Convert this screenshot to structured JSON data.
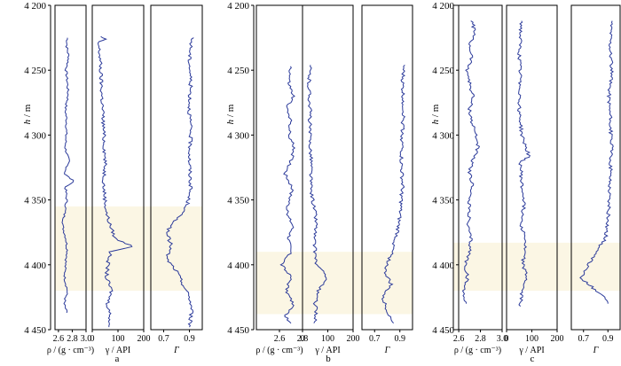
{
  "chart_data": [
    {
      "type": "line",
      "panel_label": "a",
      "ylabel_var": "h",
      "ylabel_unit": " / m",
      "ylim": [
        4200,
        4450
      ],
      "yticks": [
        4200,
        4250,
        4300,
        4350,
        4400,
        4450
      ],
      "ytick_labels": [
        "4 200",
        "4 250",
        "4 300",
        "4 350",
        "4 400",
        "4 450"
      ],
      "highlight": {
        "from": 4355,
        "to": 4420,
        "color": "#fbf6e4"
      },
      "tracks": [
        {
          "xlabel": "ρ / (g · cm⁻³)",
          "xlim": [
            2.55,
            3.0
          ],
          "xticks": [
            2.6,
            2.8,
            3.0
          ],
          "xtick_labels": [
            "2.6",
            "2.8",
            "3.0"
          ],
          "depth_range": [
            4225,
            4437
          ],
          "points": [
            [
              4225,
              2.73
            ],
            [
              4232,
              2.72
            ],
            [
              4240,
              2.75
            ],
            [
              4250,
              2.71
            ],
            [
              4260,
              2.73
            ],
            [
              4270,
              2.74
            ],
            [
              4280,
              2.7
            ],
            [
              4290,
              2.72
            ],
            [
              4300,
              2.71
            ],
            [
              4310,
              2.7
            ],
            [
              4320,
              2.75
            ],
            [
              4330,
              2.69
            ],
            [
              4336,
              2.83
            ],
            [
              4340,
              2.7
            ],
            [
              4350,
              2.72
            ],
            [
              4360,
              2.69
            ],
            [
              4370,
              2.66
            ],
            [
              4380,
              2.71
            ],
            [
              4390,
              2.73
            ],
            [
              4400,
              2.7
            ],
            [
              4410,
              2.69
            ],
            [
              4420,
              2.73
            ],
            [
              4430,
              2.68
            ],
            [
              4437,
              2.72
            ]
          ]
        },
        {
          "xlabel": "γ / API",
          "xlim": [
            0,
            200
          ],
          "xticks": [
            0,
            100,
            200
          ],
          "xtick_labels": [
            "0",
            "100",
            "200"
          ],
          "depth_range": [
            4224,
            4448
          ],
          "points": [
            [
              4224,
              30
            ],
            [
              4226,
              50
            ],
            [
              4228,
              22
            ],
            [
              4240,
              30
            ],
            [
              4260,
              35
            ],
            [
              4280,
              40
            ],
            [
              4300,
              45
            ],
            [
              4320,
              50
            ],
            [
              4340,
              45
            ],
            [
              4360,
              55
            ],
            [
              4370,
              70
            ],
            [
              4380,
              90
            ],
            [
              4386,
              160
            ],
            [
              4390,
              70
            ],
            [
              4400,
              60
            ],
            [
              4410,
              55
            ],
            [
              4420,
              75
            ],
            [
              4430,
              60
            ],
            [
              4440,
              70
            ],
            [
              4448,
              65
            ]
          ]
        },
        {
          "xlabel": "Γ",
          "xlim": [
            0.6,
            1.0
          ],
          "xticks": [
            0.7,
            0.9
          ],
          "xtick_labels": [
            "0.7",
            "0.9"
          ],
          "depth_range": [
            4225,
            4448
          ],
          "points": [
            [
              4225,
              0.92
            ],
            [
              4240,
              0.9
            ],
            [
              4260,
              0.91
            ],
            [
              4280,
              0.9
            ],
            [
              4300,
              0.91
            ],
            [
              4320,
              0.9
            ],
            [
              4340,
              0.91
            ],
            [
              4355,
              0.88
            ],
            [
              4365,
              0.8
            ],
            [
              4375,
              0.72
            ],
            [
              4385,
              0.76
            ],
            [
              4395,
              0.72
            ],
            [
              4405,
              0.8
            ],
            [
              4415,
              0.85
            ],
            [
              4425,
              0.9
            ],
            [
              4435,
              0.92
            ],
            [
              4448,
              0.9
            ]
          ]
        }
      ]
    },
    {
      "type": "line",
      "panel_label": "b",
      "ylabel_var": "h",
      "ylabel_unit": " / m",
      "ylim": [
        4200,
        4450
      ],
      "yticks": [
        4200,
        4250,
        4300,
        4350,
        4400,
        4450
      ],
      "ytick_labels": [
        "4 200",
        "4 250",
        "4 300",
        "4 350",
        "4 400",
        "4 450"
      ],
      "highlight": {
        "from": 4390,
        "to": 4438,
        "color": "#fbf6e4"
      },
      "tracks": [
        {
          "xlabel": "ρ / (g · cm⁻³)",
          "xlim": [
            2.4,
            2.8
          ],
          "xticks": [
            2.6,
            2.8
          ],
          "xtick_labels": [
            "2.6",
            "2.8"
          ],
          "depth_range": [
            4247,
            4445
          ],
          "points": [
            [
              4247,
              2.7
            ],
            [
              4260,
              2.68
            ],
            [
              4270,
              2.72
            ],
            [
              4280,
              2.66
            ],
            [
              4290,
              2.7
            ],
            [
              4300,
              2.68
            ],
            [
              4310,
              2.73
            ],
            [
              4320,
              2.7
            ],
            [
              4330,
              2.65
            ],
            [
              4340,
              2.71
            ],
            [
              4350,
              2.69
            ],
            [
              4360,
              2.66
            ],
            [
              4370,
              2.72
            ],
            [
              4380,
              2.68
            ],
            [
              4390,
              2.7
            ],
            [
              4400,
              2.62
            ],
            [
              4410,
              2.7
            ],
            [
              4420,
              2.66
            ],
            [
              4430,
              2.72
            ],
            [
              4440,
              2.65
            ],
            [
              4445,
              2.7
            ]
          ]
        },
        {
          "xlabel": "γ / API",
          "xlim": [
            0,
            200
          ],
          "xticks": [
            0,
            100,
            200
          ],
          "xtick_labels": [
            "0",
            "100",
            "200"
          ],
          "depth_range": [
            4246,
            4445
          ],
          "points": [
            [
              4246,
              30
            ],
            [
              4260,
              25
            ],
            [
              4280,
              30
            ],
            [
              4300,
              28
            ],
            [
              4320,
              35
            ],
            [
              4340,
              32
            ],
            [
              4350,
              40
            ],
            [
              4360,
              50
            ],
            [
              4370,
              55
            ],
            [
              4380,
              45
            ],
            [
              4390,
              50
            ],
            [
              4400,
              55
            ],
            [
              4410,
              100
            ],
            [
              4420,
              60
            ],
            [
              4430,
              50
            ],
            [
              4440,
              55
            ],
            [
              4445,
              45
            ]
          ]
        },
        {
          "xlabel": "Γ",
          "xlim": [
            0.6,
            1.0
          ],
          "xticks": [
            0.7,
            0.9
          ],
          "xtick_labels": [
            "0.7",
            "0.9"
          ],
          "depth_range": [
            4246,
            4445
          ],
          "points": [
            [
              4246,
              0.93
            ],
            [
              4260,
              0.92
            ],
            [
              4280,
              0.93
            ],
            [
              4300,
              0.92
            ],
            [
              4320,
              0.91
            ],
            [
              4340,
              0.92
            ],
            [
              4360,
              0.9
            ],
            [
              4375,
              0.88
            ],
            [
              4385,
              0.85
            ],
            [
              4395,
              0.82
            ],
            [
              4405,
              0.78
            ],
            [
              4415,
              0.83
            ],
            [
              4425,
              0.76
            ],
            [
              4435,
              0.8
            ],
            [
              4445,
              0.85
            ]
          ]
        }
      ]
    },
    {
      "type": "line",
      "panel_label": "c",
      "ylabel_var": "h",
      "ylabel_unit": " / m",
      "ylim": [
        4200,
        4450
      ],
      "yticks": [
        4200,
        4250,
        4300,
        4350,
        4400,
        4450
      ],
      "ytick_labels": [
        "4 200",
        "4 250",
        "4 300",
        "4 350",
        "4 400",
        "4 450"
      ],
      "highlight": {
        "from": 4383,
        "to": 4420,
        "color": "#fbf6e4"
      },
      "tracks": [
        {
          "xlabel": "ρ / (g · cm⁻³)",
          "xlim": [
            2.55,
            3.0
          ],
          "xticks": [
            2.6,
            2.8,
            3.0
          ],
          "xtick_labels": [
            "2.6",
            "2.8",
            "3.0"
          ],
          "depth_range": [
            4212,
            4430
          ],
          "points": [
            [
              4212,
              2.72
            ],
            [
              4220,
              2.75
            ],
            [
              4230,
              2.7
            ],
            [
              4240,
              2.72
            ],
            [
              4250,
              2.68
            ],
            [
              4260,
              2.7
            ],
            [
              4270,
              2.73
            ],
            [
              4280,
              2.7
            ],
            [
              4290,
              2.72
            ],
            [
              4300,
              2.76
            ],
            [
              4310,
              2.78
            ],
            [
              4320,
              2.72
            ],
            [
              4330,
              2.7
            ],
            [
              4340,
              2.73
            ],
            [
              4350,
              2.69
            ],
            [
              4360,
              2.7
            ],
            [
              4370,
              2.68
            ],
            [
              4380,
              2.71
            ],
            [
              4390,
              2.7
            ],
            [
              4400,
              2.66
            ],
            [
              4410,
              2.68
            ],
            [
              4420,
              2.64
            ],
            [
              4430,
              2.67
            ]
          ]
        },
        {
          "xlabel": "γ / API",
          "xlim": [
            0,
            200
          ],
          "xticks": [
            0,
            100,
            200
          ],
          "xtick_labels": [
            "0",
            "100",
            "200"
          ],
          "depth_range": [
            4212,
            4432
          ],
          "points": [
            [
              4212,
              60
            ],
            [
              4220,
              55
            ],
            [
              4240,
              50
            ],
            [
              4260,
              55
            ],
            [
              4280,
              50
            ],
            [
              4300,
              60
            ],
            [
              4317,
              90
            ],
            [
              4320,
              55
            ],
            [
              4340,
              60
            ],
            [
              4350,
              70
            ],
            [
              4360,
              65
            ],
            [
              4370,
              60
            ],
            [
              4380,
              75
            ],
            [
              4390,
              70
            ],
            [
              4400,
              65
            ],
            [
              4410,
              80
            ],
            [
              4420,
              60
            ],
            [
              4432,
              55
            ]
          ]
        },
        {
          "xlabel": "Γ",
          "xlim": [
            0.6,
            1.0
          ],
          "xticks": [
            0.7,
            0.9
          ],
          "xtick_labels": [
            "0.7",
            "0.9"
          ],
          "depth_range": [
            4212,
            4430
          ],
          "points": [
            [
              4212,
              0.93
            ],
            [
              4230,
              0.92
            ],
            [
              4250,
              0.93
            ],
            [
              4270,
              0.91
            ],
            [
              4290,
              0.92
            ],
            [
              4310,
              0.93
            ],
            [
              4330,
              0.92
            ],
            [
              4350,
              0.91
            ],
            [
              4365,
              0.9
            ],
            [
              4380,
              0.88
            ],
            [
              4390,
              0.8
            ],
            [
              4400,
              0.74
            ],
            [
              4410,
              0.68
            ],
            [
              4418,
              0.78
            ],
            [
              4425,
              0.88
            ],
            [
              4430,
              0.9
            ]
          ]
        }
      ]
    }
  ]
}
